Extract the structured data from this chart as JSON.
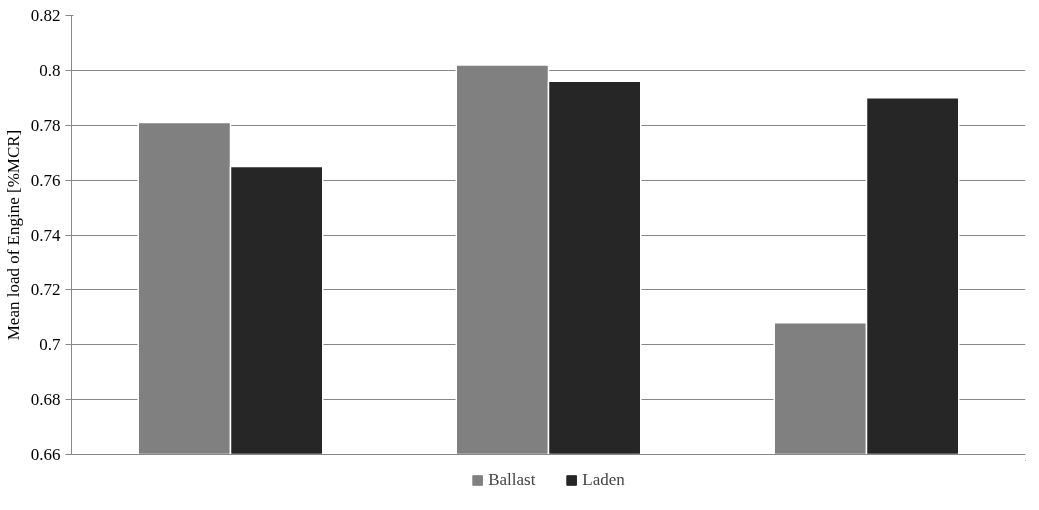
{
  "chart_data": {
    "type": "bar",
    "ylabel": "Mean load of Engine [%MCR]",
    "categories": [
      null,
      null,
      null
    ],
    "series": [
      {
        "name": "Ballast",
        "color": "#808080",
        "values": [
          0.781,
          0.802,
          0.708
        ]
      },
      {
        "name": "Laden",
        "color": "#262626",
        "values": [
          0.765,
          0.796,
          0.79
        ]
      }
    ],
    "ylim": [
      0.66,
      0.82
    ],
    "yticks": [
      0.66,
      0.68,
      0.7,
      0.72,
      0.74,
      0.76,
      0.78,
      0.8,
      0.82
    ],
    "grid": "y",
    "legend": "bottom"
  }
}
